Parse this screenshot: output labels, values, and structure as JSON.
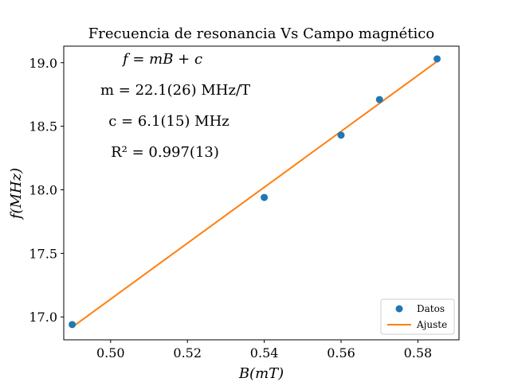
{
  "chart_data": {
    "type": "scatter",
    "title": "Frecuencia de resonancia Vs Campo magnético",
    "xlabel": "B(mT)",
    "ylabel": "f(MHz)",
    "xlim": [
      0.4878,
      0.5907
    ],
    "ylim": [
      16.82,
      19.13
    ],
    "xticks": [
      "0.50",
      "0.52",
      "0.54",
      "0.56",
      "0.58"
    ],
    "yticks": [
      "17.0",
      "17.5",
      "18.0",
      "18.5",
      "19.0"
    ],
    "series": [
      {
        "name": "Datos",
        "kind": "points",
        "color": "#1f77b4",
        "x": [
          0.49,
          0.54,
          0.56,
          0.57,
          0.585
        ],
        "y": [
          16.94,
          17.94,
          18.43,
          18.71,
          19.03
        ]
      },
      {
        "name": "Ajuste",
        "kind": "line",
        "color": "#ff7f0e",
        "x": [
          0.49,
          0.585
        ],
        "y": [
          16.92,
          19.01
        ]
      }
    ],
    "annotations": [
      "f = mB + c",
      "m = 22.1(26) MHz/T",
      "c = 6.1(15) MHz",
      "R² = 0.997(13)"
    ],
    "legend": {
      "placement": "lower-right",
      "entries": [
        "Datos",
        "Ajuste"
      ]
    },
    "grid": false
  }
}
